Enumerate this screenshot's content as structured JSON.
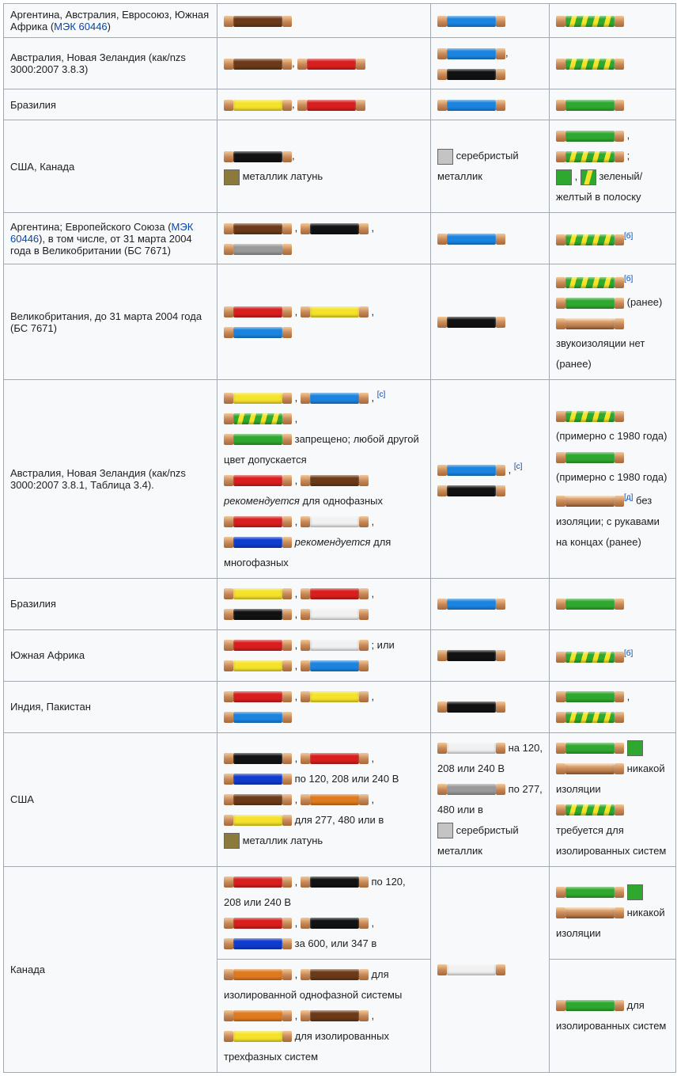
{
  "colors": {
    "brown": "#6b3a18",
    "red": "#d81e1e",
    "lightblue": "#1b84e0",
    "blue": "#0e3ccf",
    "black": "#121212",
    "yellow": "#f5e32b",
    "green": "#2fa82f",
    "white": "#f1f1f1",
    "grey": "#9a9a9a",
    "lightgrey": "#c4c4c4",
    "orange": "#e07a1e",
    "brass": "#8c7a3c",
    "green_yellow_striped": "repeating-linear-gradient(105deg,#2fa82f 0 8px,#f5e32b 8px 14px)"
  },
  "link": {
    "iec": "МЭК 60446"
  },
  "sup": {
    "b": "[б]",
    "c": "[с]",
    "d": "[д]"
  },
  "rows": [
    {
      "region_pre": "Аргентина, Австралия, Евросоюз, Южная Африка (",
      "region_link": "iec",
      "region_post": ")",
      "phase": [
        {
          "w": [
            "brown"
          ]
        }
      ],
      "neutral": [
        {
          "w": [
            "lightblue"
          ]
        }
      ],
      "ground": [
        {
          "w": [
            "green_yellow_striped"
          ]
        }
      ]
    },
    {
      "region_pre": "Австралия, Новая Зеландия (как/nzs 3000:2007 3.8.3)",
      "phase": [
        {
          "w": [
            "brown"
          ],
          "sep": ","
        },
        {
          "w": [
            "red"
          ]
        }
      ],
      "neutral": [
        {
          "w": [
            "lightblue"
          ],
          "sep": ","
        },
        {
          "br": true
        },
        {
          "w": [
            "black"
          ]
        }
      ],
      "ground": [
        {
          "w": [
            "green_yellow_striped"
          ]
        }
      ]
    },
    {
      "region_pre": "Бразилия",
      "phase": [
        {
          "w": [
            "yellow"
          ],
          "sep": ","
        },
        {
          "w": [
            "red"
          ]
        }
      ],
      "neutral": [
        {
          "w": [
            "lightblue"
          ]
        }
      ],
      "ground": [
        {
          "w": [
            "green"
          ]
        }
      ]
    },
    {
      "region_pre": "США, Канада",
      "phase": [
        {
          "w": [
            "black"
          ],
          "sep": ","
        },
        {
          "br": true
        },
        {
          "sw": "brass",
          "txt": " металлик латунь"
        }
      ],
      "neutral": [
        {
          "sw": "lightgrey",
          "txt": " серебристый металлик"
        }
      ],
      "ground": [
        {
          "w": [
            "green"
          ],
          "sep": " ,"
        },
        {
          "br": true
        },
        {
          "w": [
            "green_yellow_striped"
          ],
          "sep": " ;"
        },
        {
          "br": true
        },
        {
          "sw": "green",
          "sep": " , "
        },
        {
          "sw_stripe": true,
          "txt": " зеленый/желтый в полоску"
        }
      ]
    },
    {
      "region_pre": "Аргентина; Европейского Союза (",
      "region_link": "iec",
      "region_post": "), в том числе, от 31 марта 2004 года в Великобритании (БС 7671)",
      "phase": [
        {
          "w": [
            "brown"
          ],
          "sep": " ,"
        },
        {
          "w": [
            "black"
          ],
          "sep": " ,"
        },
        {
          "br": true
        },
        {
          "w": [
            "grey"
          ]
        }
      ],
      "neutral": [
        {
          "w": [
            "lightblue"
          ]
        }
      ],
      "ground": [
        {
          "w": [
            "green_yellow_striped"
          ],
          "sup": "b"
        }
      ]
    },
    {
      "region_pre": "Великобритания, до 31 марта 2004 года (БС 7671)",
      "phase": [
        {
          "w": [
            "red"
          ],
          "sep": " ,"
        },
        {
          "w": [
            "yellow"
          ],
          "sep": " ,"
        },
        {
          "br": true
        },
        {
          "w": [
            "lightblue"
          ]
        }
      ],
      "neutral": [
        {
          "w": [
            "black"
          ]
        }
      ],
      "ground": [
        {
          "w": [
            "green_yellow_striped"
          ],
          "sup": "b"
        },
        {
          "br": true
        },
        {
          "w": [
            "green"
          ],
          "txt": " (ранее)"
        },
        {
          "br": true
        },
        {
          "w": [
            "bare"
          ],
          "br": true
        },
        {
          "txt": "звукоизоляции нет (ранее)"
        }
      ]
    },
    {
      "region_pre": "Австралия, Новая Зеландия (как/nzs 3000:2007 3.8.1, Таблица 3.4).",
      "phase": [
        {
          "w": [
            "yellow"
          ],
          "sep": " ,"
        },
        {
          "w": [
            "lightblue"
          ],
          "sep": " ,",
          "sup": "c"
        },
        {
          "br": true
        },
        {
          "w": [
            "green_yellow_striped"
          ],
          "sep": " ,"
        },
        {
          "br": true
        },
        {
          "w": [
            "green"
          ],
          "txt": " запрещено; любой другой цвет допускается"
        },
        {
          "br": true
        },
        {
          "w": [
            "red"
          ],
          "sep": " ,"
        },
        {
          "w": [
            "brown"
          ],
          "br": true
        },
        {
          "italic": "рекомендуется",
          "txt": " для однофазных"
        },
        {
          "br": true
        },
        {
          "w": [
            "red"
          ],
          "sep": " ,"
        },
        {
          "w": [
            "white"
          ],
          "sep": " ,"
        },
        {
          "br": true
        },
        {
          "w": [
            "blue"
          ],
          "sep": " "
        },
        {
          "italic": "рекомендуется",
          "txt": " для многофазных"
        }
      ],
      "neutral": [
        {
          "w": [
            "lightblue"
          ],
          "sep": " ,",
          "sup": "c"
        },
        {
          "br": true
        },
        {
          "w": [
            "black"
          ]
        }
      ],
      "ground": [
        {
          "w": [
            "green_yellow_striped"
          ],
          "txt": " (примерно с 1980 года)"
        },
        {
          "br": true
        },
        {
          "w": [
            "green"
          ],
          "txt": " (примерно с 1980 года)"
        },
        {
          "br": true
        },
        {
          "w": [
            "bare"
          ],
          "txt": " без изоляции; с рукавами на концах (ранее)",
          "sup": "d"
        }
      ]
    },
    {
      "region_pre": "Бразилия",
      "phase": [
        {
          "w": [
            "yellow"
          ],
          "sep": " ,"
        },
        {
          "w": [
            "red"
          ],
          "sep": " ,"
        },
        {
          "br": true
        },
        {
          "w": [
            "black"
          ],
          "sep": " ,"
        },
        {
          "w": [
            "white"
          ]
        }
      ],
      "neutral": [
        {
          "w": [
            "lightblue"
          ]
        }
      ],
      "ground": [
        {
          "w": [
            "green"
          ]
        }
      ]
    },
    {
      "region_pre": "Южная Африка",
      "phase": [
        {
          "w": [
            "red"
          ],
          "sep": " ,"
        },
        {
          "w": [
            "white"
          ],
          "txt": " ; или"
        },
        {
          "br": true
        },
        {
          "w": [
            "yellow"
          ],
          "sep": " ,"
        },
        {
          "w": [
            "lightblue"
          ]
        }
      ],
      "neutral": [
        {
          "w": [
            "black"
          ]
        }
      ],
      "ground": [
        {
          "w": [
            "green_yellow_striped"
          ],
          "sup": "b"
        }
      ]
    },
    {
      "region_pre": "Индия, Пакистан",
      "phase": [
        {
          "w": [
            "red"
          ],
          "sep": " ,"
        },
        {
          "w": [
            "yellow"
          ],
          "sep": " ,"
        },
        {
          "br": true
        },
        {
          "w": [
            "lightblue"
          ]
        }
      ],
      "neutral": [
        {
          "w": [
            "black"
          ]
        }
      ],
      "ground": [
        {
          "w": [
            "green"
          ],
          "sep": " ,"
        },
        {
          "br": true
        },
        {
          "w": [
            "green_yellow_striped"
          ]
        }
      ]
    },
    {
      "region_pre": "США",
      "phase": [
        {
          "w": [
            "black"
          ],
          "sep": " ,"
        },
        {
          "w": [
            "red"
          ],
          "sep": " ,"
        },
        {
          "br": true
        },
        {
          "w": [
            "blue"
          ],
          "txt": " по 120, 208 или 240 В"
        },
        {
          "br": true
        },
        {
          "w": [
            "brown"
          ],
          "sep": " ,"
        },
        {
          "w": [
            "orange"
          ],
          "sep": " ,"
        },
        {
          "br": true
        },
        {
          "w": [
            "yellow"
          ],
          "txt": " для 277, 480 или в"
        },
        {
          "br": true
        },
        {
          "sw": "brass",
          "txt": " металлик латунь"
        }
      ],
      "neutral": [
        {
          "w": [
            "white"
          ],
          "txt": " на 120, 208 или 240 В"
        },
        {
          "br": true
        },
        {
          "w": [
            "grey"
          ],
          "txt": " по 277, 480 или в"
        },
        {
          "br": true
        },
        {
          "sw": "lightgrey",
          "txt": " серебристый металлик"
        }
      ],
      "ground": [
        {
          "w": [
            "green"
          ],
          "sep": " "
        },
        {
          "sw": "green"
        },
        {
          "br": true
        },
        {
          "w": [
            "bare"
          ],
          "txt": " никакой изоляции"
        },
        {
          "br": true
        },
        {
          "w": [
            "green_yellow_striped"
          ],
          "txt": " требуется для изолированных систем"
        }
      ]
    },
    {
      "region_pre": "Канада",
      "rowspan_region": 2,
      "rowspan_neutral": 2,
      "phase": [
        {
          "w": [
            "red"
          ],
          "sep": " ,"
        },
        {
          "w": [
            "black"
          ],
          "txt": " по 120, 208 или 240 В"
        },
        {
          "br": true
        },
        {
          "w": [
            "red"
          ],
          "sep": " ,"
        },
        {
          "w": [
            "black"
          ],
          "sep": " ,"
        },
        {
          "br": true
        },
        {
          "w": [
            "blue"
          ],
          "txt": " за 600, или 347 в"
        }
      ],
      "neutral": [
        {
          "w": [
            "white"
          ]
        }
      ],
      "ground": [
        {
          "w": [
            "green"
          ],
          "sep": " "
        },
        {
          "sw": "green"
        },
        {
          "br": true
        },
        {
          "w": [
            "bare"
          ],
          "txt": " никакой изоляции"
        }
      ]
    },
    {
      "skip_region": true,
      "skip_neutral": true,
      "phase": [
        {
          "w": [
            "orange"
          ],
          "sep": " ,"
        },
        {
          "w": [
            "brown"
          ],
          "txt": " для изолированной однофазной системы"
        },
        {
          "br": true
        },
        {
          "w": [
            "orange"
          ],
          "sep": " ,"
        },
        {
          "w": [
            "brown"
          ],
          "sep": " ,"
        },
        {
          "br": true
        },
        {
          "w": [
            "yellow"
          ],
          "txt": " для изолированных трехфазных систем"
        }
      ],
      "ground": [
        {
          "w": [
            "green"
          ],
          "txt": " для изолированных систем"
        }
      ]
    }
  ]
}
